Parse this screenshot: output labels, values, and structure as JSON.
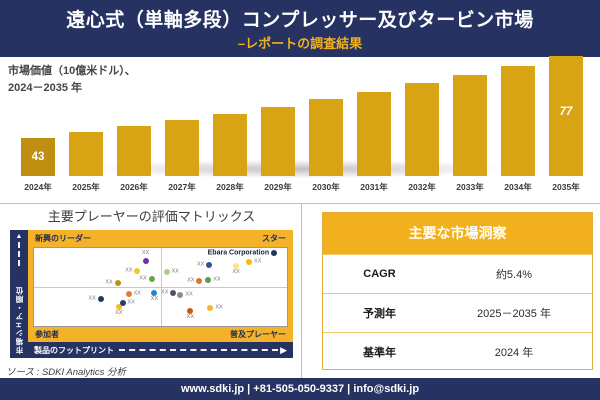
{
  "header": {
    "title": "遠心式（単軸多段）コンプレッサー及びタービン市場",
    "subtitle": "–レポートの調査結果"
  },
  "chart_data": [
    {
      "type": "bar",
      "caption_line1": "市場価値（10億米ドル）、",
      "caption_line2": "2024－2035 年",
      "categories": [
        "2024年",
        "2025年",
        "2026年",
        "2027年",
        "2028年",
        "2029年",
        "2030年",
        "2031年",
        "2032年",
        "2033年",
        "2034年",
        "2035年"
      ],
      "values": [
        43,
        45.3,
        47.8,
        50.4,
        53.1,
        56.0,
        59.0,
        62.2,
        65.6,
        69.1,
        72.8,
        77
      ],
      "value_labels": [
        {
          "index": 0,
          "text": "43"
        },
        {
          "index": 11,
          "text": "77"
        }
      ],
      "bar_color": "#D9A413",
      "first_bar_color": "#BE8F10",
      "axis_note": "y-axis hidden, bars truncated (not zero-based)"
    },
    {
      "type": "scatter",
      "title": "主要プレーヤーの評価マトリックス",
      "xlabel": "製品のフットプリント",
      "ylabel": "市場シェア・順位",
      "quadrants": {
        "top_left": "新興のリーダー",
        "top_right": "スター",
        "bottom_left": "参加者",
        "bottom_right": "普及プレーヤー"
      },
      "points": [
        {
          "x": 44.1,
          "y": 16.3,
          "color": "#7030A0",
          "label": "XX",
          "side": "above"
        },
        {
          "x": 40.9,
          "y": 30.0,
          "color": "#F0C62F",
          "label": "XX",
          "side": "left"
        },
        {
          "x": 33.1,
          "y": 45.0,
          "color": "#BF9000",
          "label": "XX",
          "side": "left"
        },
        {
          "x": 46.5,
          "y": 40.0,
          "color": "#64A73F",
          "label": "XX",
          "side": "left"
        },
        {
          "x": 37.4,
          "y": 58.8,
          "color": "#E07B39",
          "label": "XX",
          "side": "right"
        },
        {
          "x": 26.4,
          "y": 65.0,
          "color": "#1F3864",
          "label": "XX",
          "side": "left"
        },
        {
          "x": 33.5,
          "y": 75.0,
          "color": "#EFBF2A",
          "label": "XX",
          "side": "below"
        },
        {
          "x": 35.0,
          "y": 70.0,
          "color": "#2A3B66",
          "label": "XX",
          "side": "right"
        },
        {
          "x": 47.6,
          "y": 57.5,
          "color": "#1E88D2",
          "label": "XX",
          "side": "below"
        },
        {
          "x": 52.4,
          "y": 31.3,
          "color": "#A8CD8C",
          "label": "XX",
          "side": "right"
        },
        {
          "x": 69.3,
          "y": 21.3,
          "color": "#2F5496",
          "label": "XX",
          "side": "left"
        },
        {
          "x": 79.9,
          "y": 22.5,
          "color": "#FFE28A",
          "label": "XX",
          "side": "below"
        },
        {
          "x": 85.0,
          "y": 17.5,
          "color": "#F5B81E",
          "label": "XX",
          "side": "right"
        },
        {
          "x": 94.9,
          "y": 6.3,
          "color": "#1F3864",
          "label": "Ebara Corporation",
          "side": "left",
          "company": true
        },
        {
          "x": 65.4,
          "y": 42.5,
          "color": "#E0712E",
          "label": "XX",
          "side": "left"
        },
        {
          "x": 68.9,
          "y": 41.3,
          "color": "#5B9B43",
          "label": "XX",
          "side": "right"
        },
        {
          "x": 55.1,
          "y": 57.5,
          "color": "#4A5568",
          "label": "XX",
          "side": "left"
        },
        {
          "x": 57.9,
          "y": 60.0,
          "color": "#8C8C8C",
          "label": "XX",
          "side": "right"
        },
        {
          "x": 61.8,
          "y": 81.3,
          "color": "#C55A11",
          "label": "XX",
          "side": "below"
        },
        {
          "x": 69.7,
          "y": 76.3,
          "color": "#F2B929",
          "label": "XX",
          "side": "right"
        }
      ]
    }
  ],
  "insights_table": {
    "title": "主要な市場洞察",
    "rows": [
      {
        "label": "CAGR",
        "value": "約5.4%"
      },
      {
        "label": "予測年",
        "value": "2025－2035 年"
      },
      {
        "label": "基準年",
        "value": "2024 年"
      }
    ]
  },
  "source_note": "ソース : SDKI Analytics 分析",
  "footer": "www.sdki.jp | +81-505-050-9337 | info@sdki.jp",
  "colors": {
    "navy": "#263262",
    "gold_accent": "#F2B01E",
    "matrix_frame_gold": "#F3B229",
    "bar_gold": "#D9A413",
    "first_bar_gold": "#BE8F10",
    "divider_gray": "#BFBFBF"
  }
}
